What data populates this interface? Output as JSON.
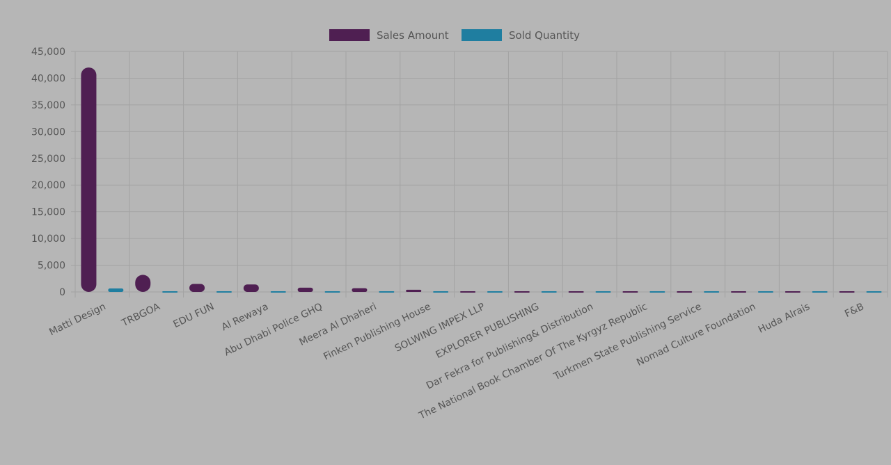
{
  "chart_data": {
    "type": "bar",
    "categories": [
      "Matti Design",
      "TRBGOA",
      "EDU FUN",
      "Al Rewaya",
      "Abu Dhabi Police GHQ",
      "Meera Al Dhaheri",
      "Finken Publishing House",
      "SOLWING IMPEX LLP",
      "EXPLORER PUBLISHING",
      "Dar Fekra for Publishing& Distribution",
      "The National Book Chamber Of The Kyrgyz Republic",
      "Turkmen State Publishing Service",
      "Nomad Culture Foundation",
      "Huda Alrais",
      "F&B"
    ],
    "series": [
      {
        "name": "Sales Amount",
        "color": "#4f1f52",
        "values": [
          42000,
          3200,
          1500,
          1400,
          800,
          700,
          400,
          250,
          250,
          250,
          250,
          200,
          150,
          50,
          150
        ]
      },
      {
        "name": "Sold Quantity",
        "color": "#1f7ea0",
        "values": [
          650,
          0,
          60,
          60,
          40,
          40,
          40,
          40,
          40,
          40,
          0,
          40,
          40,
          60,
          60
        ]
      }
    ],
    "ylim": [
      0,
      45000
    ],
    "yticks": [
      "0",
      "5,000",
      "10,000",
      "15,000",
      "20,000",
      "25,000",
      "30,000",
      "35,000",
      "40,000",
      "45,000"
    ],
    "ytick_values": [
      0,
      5000,
      10000,
      15000,
      20000,
      25000,
      30000,
      35000,
      40000,
      45000
    ],
    "legend_position": "top-center",
    "grid": true,
    "grid_color": "#a3a3a3",
    "axis_color": "#9a9a9a"
  }
}
